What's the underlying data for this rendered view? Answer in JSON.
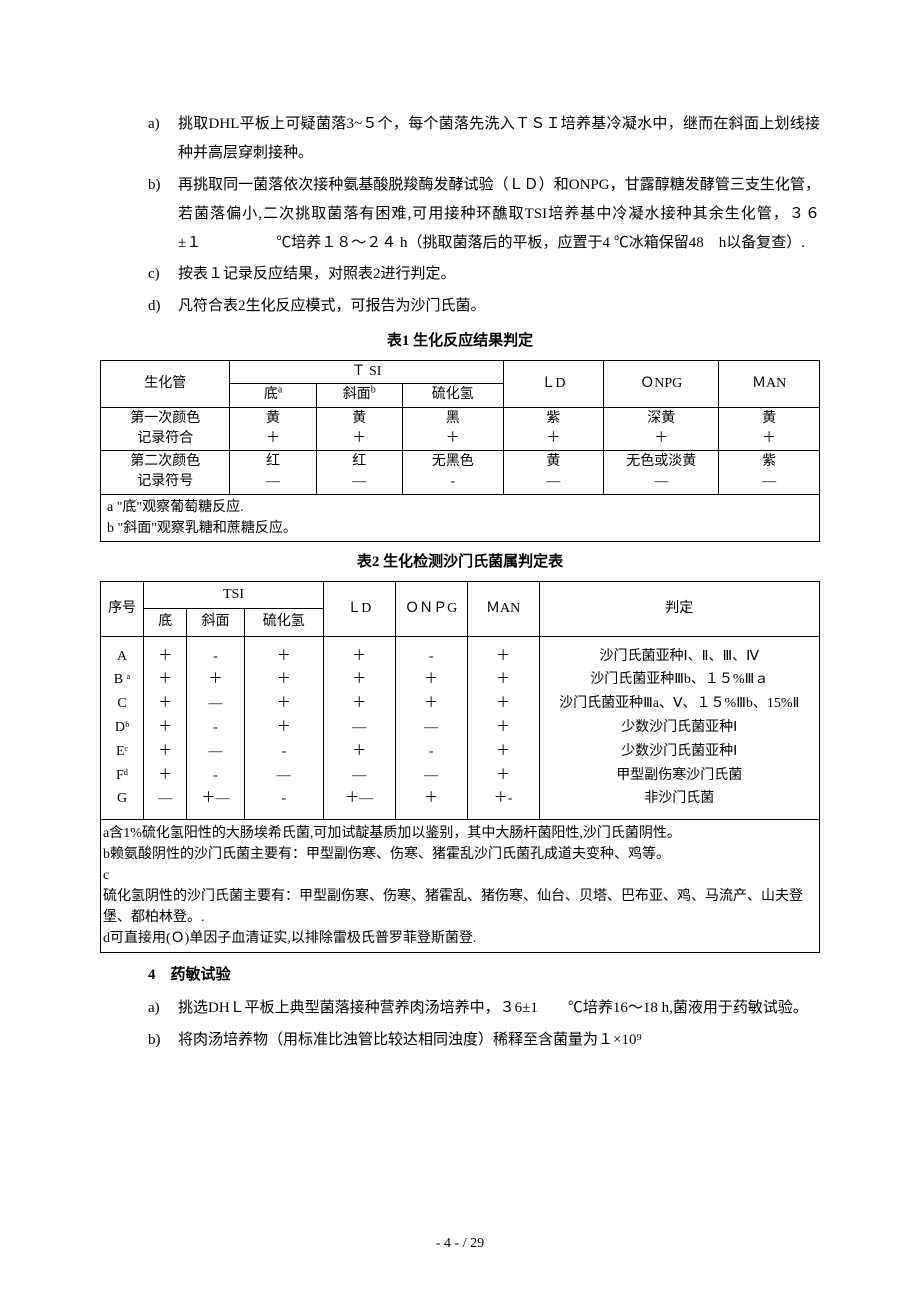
{
  "list1": {
    "a": {
      "marker": "a)",
      "text": "挑取DHL平板上可疑菌落3~５个，每个菌落先洗入ＴＳＩ培养基冷凝水中，继而在斜面上划线接种并高层穿刺接种。"
    },
    "b": {
      "marker": "b)",
      "text": "再挑取同一菌落依次接种氨基酸脱羧酶发酵试验（ＬＤ）和ONPG，甘露醇糖发酵管三支生化管，若菌落偏小,二次挑取菌落有困难,可用接种环醮取TSI培养基中冷凝水接种其余生化管，３６±１     ℃培养１８～２４ h（挑取菌落后的平板，应置于4 ℃冰箱保留48　h以备复查）."
    },
    "c": {
      "marker": "c)",
      "text": "按表１记录反应结果，对照表2进行判定。"
    },
    "d": {
      "marker": "d)",
      "text": "凡符合表2生化反应模式，可报告为沙门氏菌。"
    }
  },
  "table1": {
    "caption": "表1  生化反应结果判定",
    "headers": {
      "c1": "生化管",
      "tsi": "Ｔ SI",
      "c2": "底",
      "c2_sup": "a",
      "c3": "斜面",
      "c3_sup": "b",
      "c4": "硫化氢",
      "c5": "ＬD",
      "c6": "ＯNPG",
      "c7": "ＭAN"
    },
    "r1": {
      "c1a": "第一次颜色",
      "c1b": "记录符合",
      "c2a": "黄",
      "c2b": "＋",
      "c3a": "黄",
      "c3b": "＋",
      "c4a": "黑",
      "c4b": "＋",
      "c5a": "紫",
      "c5b": "＋",
      "c6a": "深黄",
      "c6b": "＋",
      "c7a": "黄",
      "c7b": "＋"
    },
    "r2": {
      "c1a": "第二次颜色",
      "c1b": "记录符号",
      "c2a": "红",
      "c2b": "—",
      "c3a": "红",
      "c3b": "—",
      "c4a": "无黑色",
      "c4b": "-",
      "c5a": "黄",
      "c5b": "—",
      "c6a": "无色或淡黄",
      "c6b": "—",
      "c7a": "紫",
      "c7b": "—"
    },
    "notes": "a  \"底\"观察葡萄糖反应.\nb \"斜面\"观察乳糖和蔗糖反应。"
  },
  "table2": {
    "caption": "表2  生化检测沙门氏菌属判定表",
    "headers": {
      "c1": "序号",
      "tsi": "TSI",
      "c2": "底",
      "c3": "斜面",
      "c4": "硫化氢",
      "c5": "ＬD",
      "c6": "ＯＮＰG",
      "c7": "ＭAN",
      "c8": "判定"
    },
    "col1": "A\nB ᵃ\nC\nDᵇ\nEᶜ\nFᵈ\nG",
    "col2": "＋\n＋\n＋\n＋\n＋\n＋\n—",
    "col3": "-\n＋\n—\n-\n—\n-\n＋—",
    "col4": "＋\n＋\n＋\n＋\n-\n—\n-",
    "col5": "＋\n＋\n＋\n—\n＋\n—\n＋—",
    "col6": "-\n＋\n＋\n—\n-\n—\n＋",
    "col7": "＋\n＋\n＋\n＋\n＋\n＋\n＋-",
    "col8": "沙门氏菌亚种Ⅰ、Ⅱ、Ⅲ、Ⅳ\n沙门氏菌亚种Ⅲb、１５%Ⅲａ\n沙门氏菌亚种Ⅲa、Ⅴ、１５%Ⅲb、15%Ⅱ\n少数沙门氏菌亚种Ⅰ\n少数沙门氏菌亚种Ⅰ\n甲型副伤寒沙门氏菌\n非沙门氏菌",
    "notes": "a含1%硫化氢阳性的大肠埃希氏菌,可加试靛基质加以鉴别，其中大肠杆菌阳性,沙门氏菌阴性。\nb赖氨酸阴性的沙门氏菌主要有：甲型副伤寒、伤寒、猪霍乱沙门氏菌孔成道夫变种、鸡等。\nc\n硫化氢阴性的沙门氏菌主要有：甲型副伤寒、伤寒、猪霍乱、猪伤寒、仙台、贝塔、巴布亚、鸡、马流产、山夫登堡、都柏林登。.\nd可直接用(Ｏ)单因子血清证实,以排除雷极氏普罗菲登斯菌登."
  },
  "section4": {
    "heading": "4 药敏试验",
    "a": {
      "marker": "a)",
      "text": "挑选DHＬ平板上典型菌落接种营养肉汤培养中，３6±1  ℃培养16～18 h,菌液用于药敏试验。"
    },
    "b": {
      "marker": "b)",
      "text": "将肉汤培养物（用标准比浊管比较达相同浊度）稀释至含菌量为１×10⁹"
    }
  },
  "pageNumber": "- 4 -  / 29"
}
